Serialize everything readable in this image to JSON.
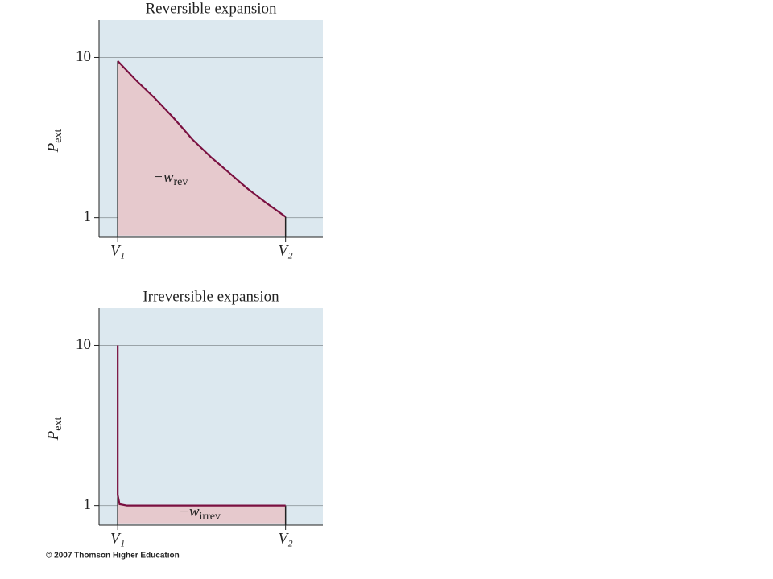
{
  "chart_data": [
    {
      "type": "area",
      "title": "Reversible expansion",
      "ylabel": "P",
      "ylabel_sub": "ext",
      "annotation": "−w",
      "annotation_sub": "rev",
      "xlim": [
        0,
        12
      ],
      "ylim": [
        -0.1,
        12.1
      ],
      "xticks": [
        {
          "value": 1,
          "label": "V₁"
        },
        {
          "value": 10,
          "label": "V₂"
        }
      ],
      "yticks": [
        1,
        10
      ],
      "grid": true,
      "series": [
        {
          "color": "#7a1040",
          "fill": "#e6c9cd",
          "x": [
            1,
            2,
            3,
            4,
            5,
            6,
            7,
            8,
            9,
            10
          ],
          "values": [
            9.8,
            8.7,
            7.7,
            6.6,
            5.4,
            4.4,
            3.5,
            2.6,
            1.8,
            1.05
          ]
        }
      ]
    },
    {
      "type": "area",
      "title": "Irreversible expansion",
      "ylabel": "P",
      "ylabel_sub": "ext",
      "annotation": "−w",
      "annotation_sub": "irrev",
      "xlim": [
        0,
        12
      ],
      "ylim": [
        -0.1,
        12.1
      ],
      "xticks": [
        {
          "value": 1,
          "label": "V₁"
        },
        {
          "value": 10,
          "label": "V₂"
        }
      ],
      "yticks": [
        1,
        10
      ],
      "grid": true,
      "series": [
        {
          "color": "#7a1040",
          "fill": "#e6c9cd",
          "x": [
            1,
            1,
            1.1,
            1.5,
            10
          ],
          "values": [
            10,
            1.6,
            1.08,
            1,
            1
          ]
        }
      ]
    }
  ],
  "credit": "© 2007 Thomson Higher Education"
}
